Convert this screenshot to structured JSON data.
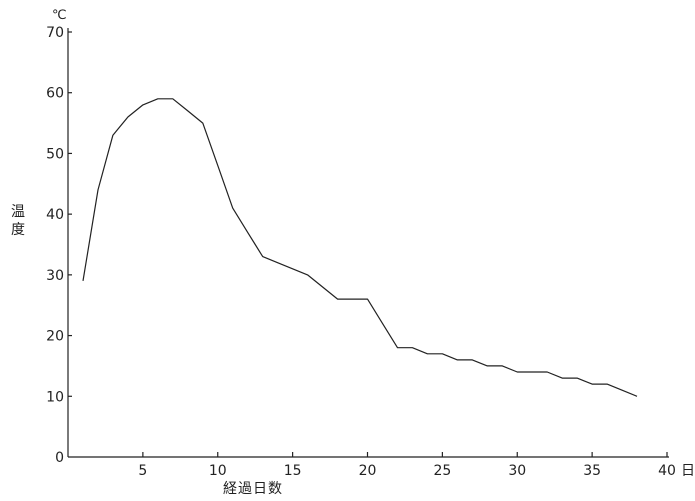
{
  "chart_data": {
    "type": "line",
    "title": "",
    "xlabel": "経過日数",
    "ylabel": "温度",
    "y_unit": "℃",
    "x_unit": "日",
    "xlim": [
      0,
      40
    ],
    "ylim": [
      0,
      70
    ],
    "x_ticks": [
      5,
      10,
      15,
      20,
      25,
      30,
      35,
      40
    ],
    "y_ticks": [
      0,
      10,
      20,
      30,
      40,
      50,
      60,
      70
    ],
    "grid": false,
    "series": [
      {
        "x": [
          1,
          2,
          3,
          4,
          5,
          6,
          7,
          8,
          9,
          10,
          11,
          12,
          13,
          14,
          15,
          16,
          17,
          18,
          19,
          20,
          21,
          22,
          23,
          24,
          25,
          26,
          27,
          28,
          29,
          30,
          31,
          32,
          33,
          34,
          35,
          36,
          37,
          38
        ],
        "values": [
          29,
          44,
          53,
          56,
          58,
          59,
          59,
          57,
          55,
          48,
          41,
          37,
          33,
          32,
          31,
          30,
          28,
          26,
          26,
          26,
          22,
          18,
          18,
          17,
          17,
          16,
          16,
          15,
          15,
          14,
          14,
          14,
          13,
          13,
          12,
          12,
          11,
          10
        ]
      }
    ]
  }
}
